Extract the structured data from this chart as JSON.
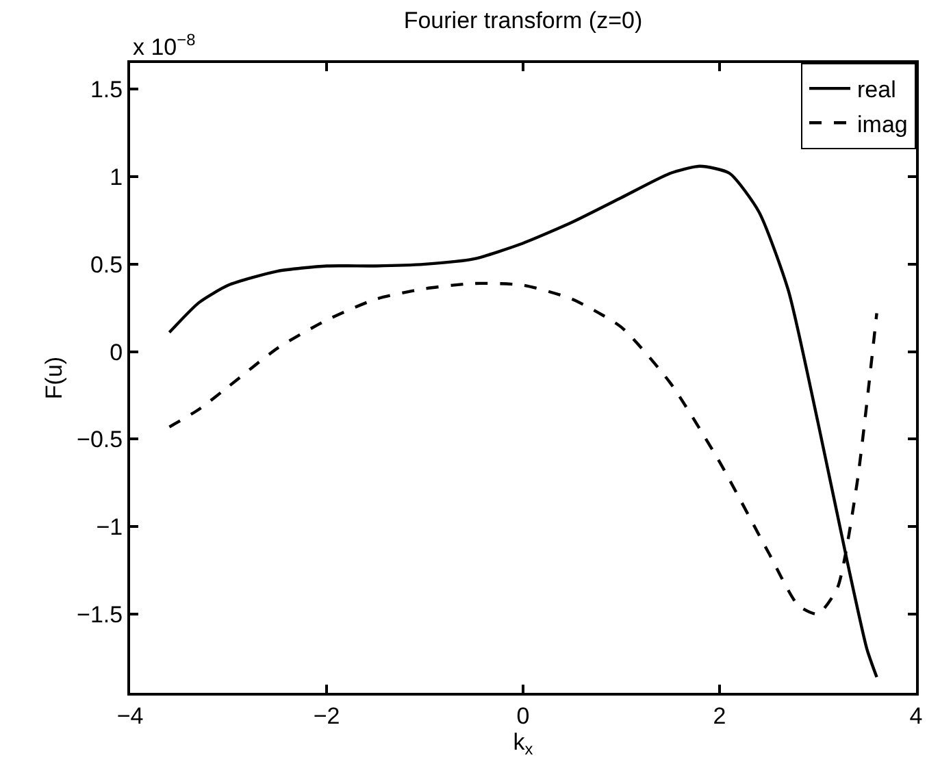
{
  "chart_data": {
    "type": "line",
    "title": "Fourier transform (z=0)",
    "xlabel": "k$_{x}$",
    "ylabel": "F(u)",
    "annotations": [
      "x 10$^{−8}$"
    ],
    "xlim": [
      -4,
      4
    ],
    "xticks": [
      {
        "value": -4,
        "label": "−4"
      },
      {
        "value": -2,
        "label": "−2"
      },
      0,
      2,
      4
    ],
    "ylim": [
      -1.95,
      1.65
    ],
    "yticks": [
      {
        "value": -1.5,
        "label": "−1.5"
      },
      {
        "value": -1,
        "label": "−1"
      },
      {
        "value": -0.5,
        "label": "−0.5"
      },
      0,
      0.5,
      1,
      1.5
    ],
    "legend": "top right",
    "series": [
      {
        "name": "real",
        "color": "#000000",
        "line_style": "solid",
        "x": [
          -3.6,
          -3.3,
          -3.0,
          -2.5,
          -2.0,
          -1.5,
          -1.0,
          -0.5,
          0.0,
          0.5,
          1.0,
          1.5,
          1.8,
          2.1,
          2.4,
          2.7,
          3.0,
          3.3,
          3.5,
          3.6
        ],
        "values": [
          0.11,
          0.28,
          0.38,
          0.46,
          0.49,
          0.49,
          0.5,
          0.53,
          0.62,
          0.74,
          0.88,
          1.02,
          1.06,
          1.02,
          0.8,
          0.35,
          -0.4,
          -1.2,
          -1.7,
          -1.86
        ]
      },
      {
        "name": "imag",
        "color": "#000000",
        "line_style": "dashed",
        "x": [
          -3.6,
          -3.3,
          -3.0,
          -2.5,
          -2.0,
          -1.5,
          -1.0,
          -0.5,
          0.0,
          0.5,
          1.0,
          1.5,
          2.0,
          2.5,
          2.8,
          3.0,
          3.2,
          3.4,
          3.6
        ],
        "values": [
          -0.43,
          -0.33,
          -0.2,
          0.02,
          0.18,
          0.3,
          0.36,
          0.39,
          0.38,
          0.3,
          0.14,
          -0.18,
          -0.63,
          -1.15,
          -1.45,
          -1.5,
          -1.35,
          -0.75,
          0.22
        ]
      }
    ]
  }
}
